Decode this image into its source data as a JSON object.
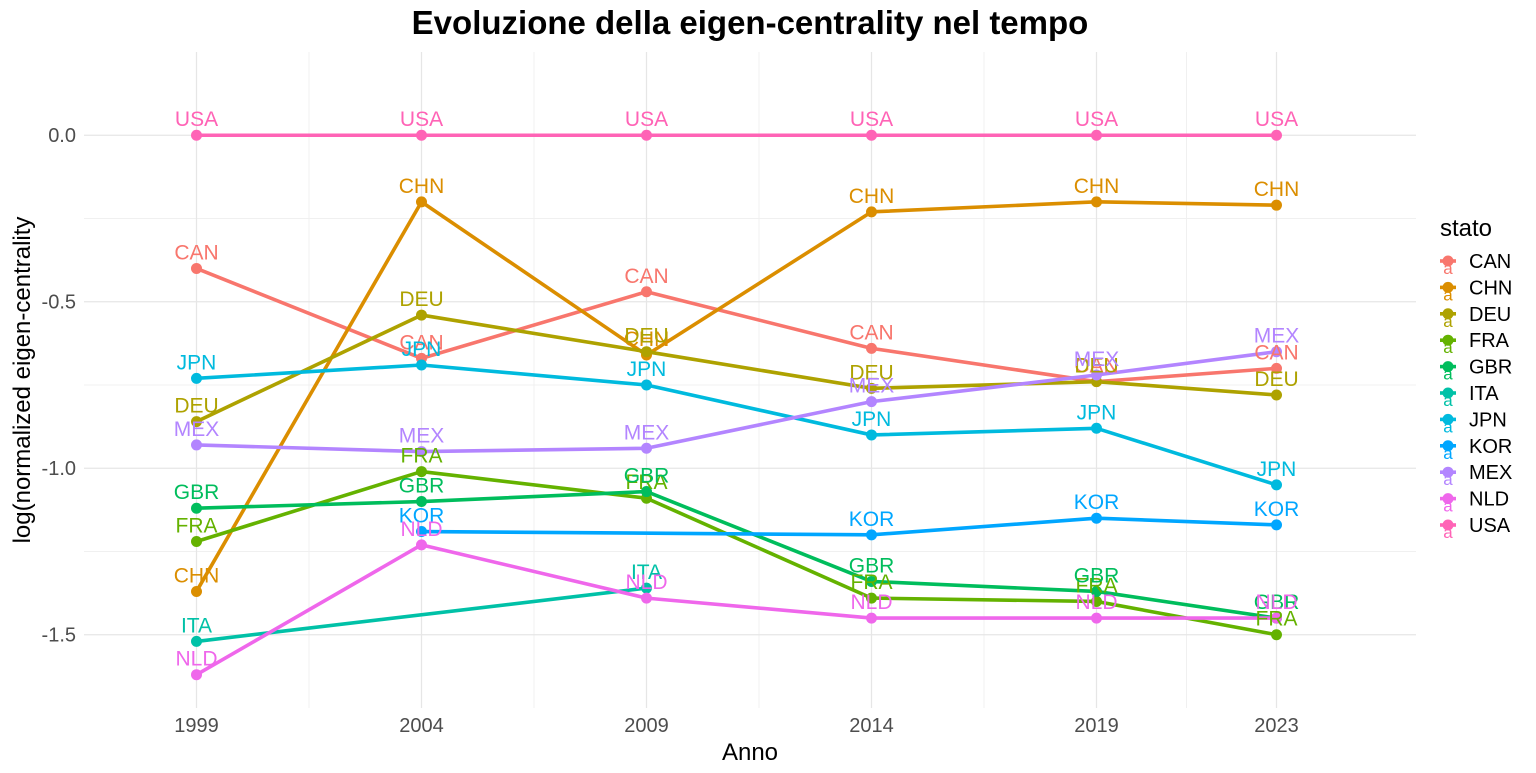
{
  "chart_data": {
    "type": "line",
    "title": "Evoluzione della eigen-centrality nel tempo",
    "xlabel": "Anno",
    "ylabel": "log(normalized eigen-centrality",
    "x": [
      1999,
      2004,
      2009,
      2014,
      2019,
      2023
    ],
    "x_tick_labels": [
      "1999",
      "2004",
      "2009",
      "2014",
      "2019",
      "2023"
    ],
    "y_ticks": [
      0.0,
      -0.5,
      -1.0,
      -1.5
    ],
    "y_tick_labels": [
      "0.0",
      "-0.5",
      "-1.0",
      "-1.5"
    ],
    "ylim": [
      -1.72,
      0.25
    ],
    "grid": true,
    "legend": {
      "title": "stato",
      "placement": "right",
      "glyph_letter": "a"
    },
    "series": [
      {
        "name": "CAN",
        "color": "#F8766D",
        "values": [
          -0.4,
          -0.67,
          -0.47,
          -0.64,
          -0.74,
          -0.7
        ]
      },
      {
        "name": "CHN",
        "color": "#DB8E00",
        "values": [
          -1.37,
          -0.2,
          -0.66,
          -0.23,
          -0.2,
          -0.21
        ]
      },
      {
        "name": "DEU",
        "color": "#AEA200",
        "values": [
          -0.86,
          -0.54,
          -0.65,
          -0.76,
          -0.74,
          -0.78
        ]
      },
      {
        "name": "FRA",
        "color": "#64B200",
        "values": [
          -1.22,
          -1.01,
          -1.09,
          -1.39,
          -1.4,
          -1.5
        ]
      },
      {
        "name": "GBR",
        "color": "#00BD5C",
        "values": [
          -1.12,
          -1.1,
          -1.07,
          -1.34,
          -1.37,
          -1.45
        ]
      },
      {
        "name": "ITA",
        "color": "#00C1A7",
        "values": [
          -1.52,
          null,
          -1.36,
          null,
          null,
          null
        ]
      },
      {
        "name": "JPN",
        "color": "#00BADE",
        "values": [
          -0.73,
          -0.69,
          -0.75,
          -0.9,
          -0.88,
          -1.05
        ]
      },
      {
        "name": "KOR",
        "color": "#00A6FF",
        "values": [
          null,
          -1.19,
          null,
          -1.2,
          -1.15,
          -1.17
        ]
      },
      {
        "name": "MEX",
        "color": "#B385FF",
        "values": [
          -0.93,
          -0.95,
          -0.94,
          -0.8,
          -0.72,
          -0.65
        ]
      },
      {
        "name": "NLD",
        "color": "#EF67EB",
        "values": [
          -1.62,
          -1.23,
          -1.39,
          -1.45,
          -1.45,
          -1.45
        ]
      },
      {
        "name": "USA",
        "color": "#FF63B6",
        "values": [
          0.0,
          0.0,
          0.0,
          0.0,
          0.0,
          0.0
        ]
      }
    ]
  }
}
